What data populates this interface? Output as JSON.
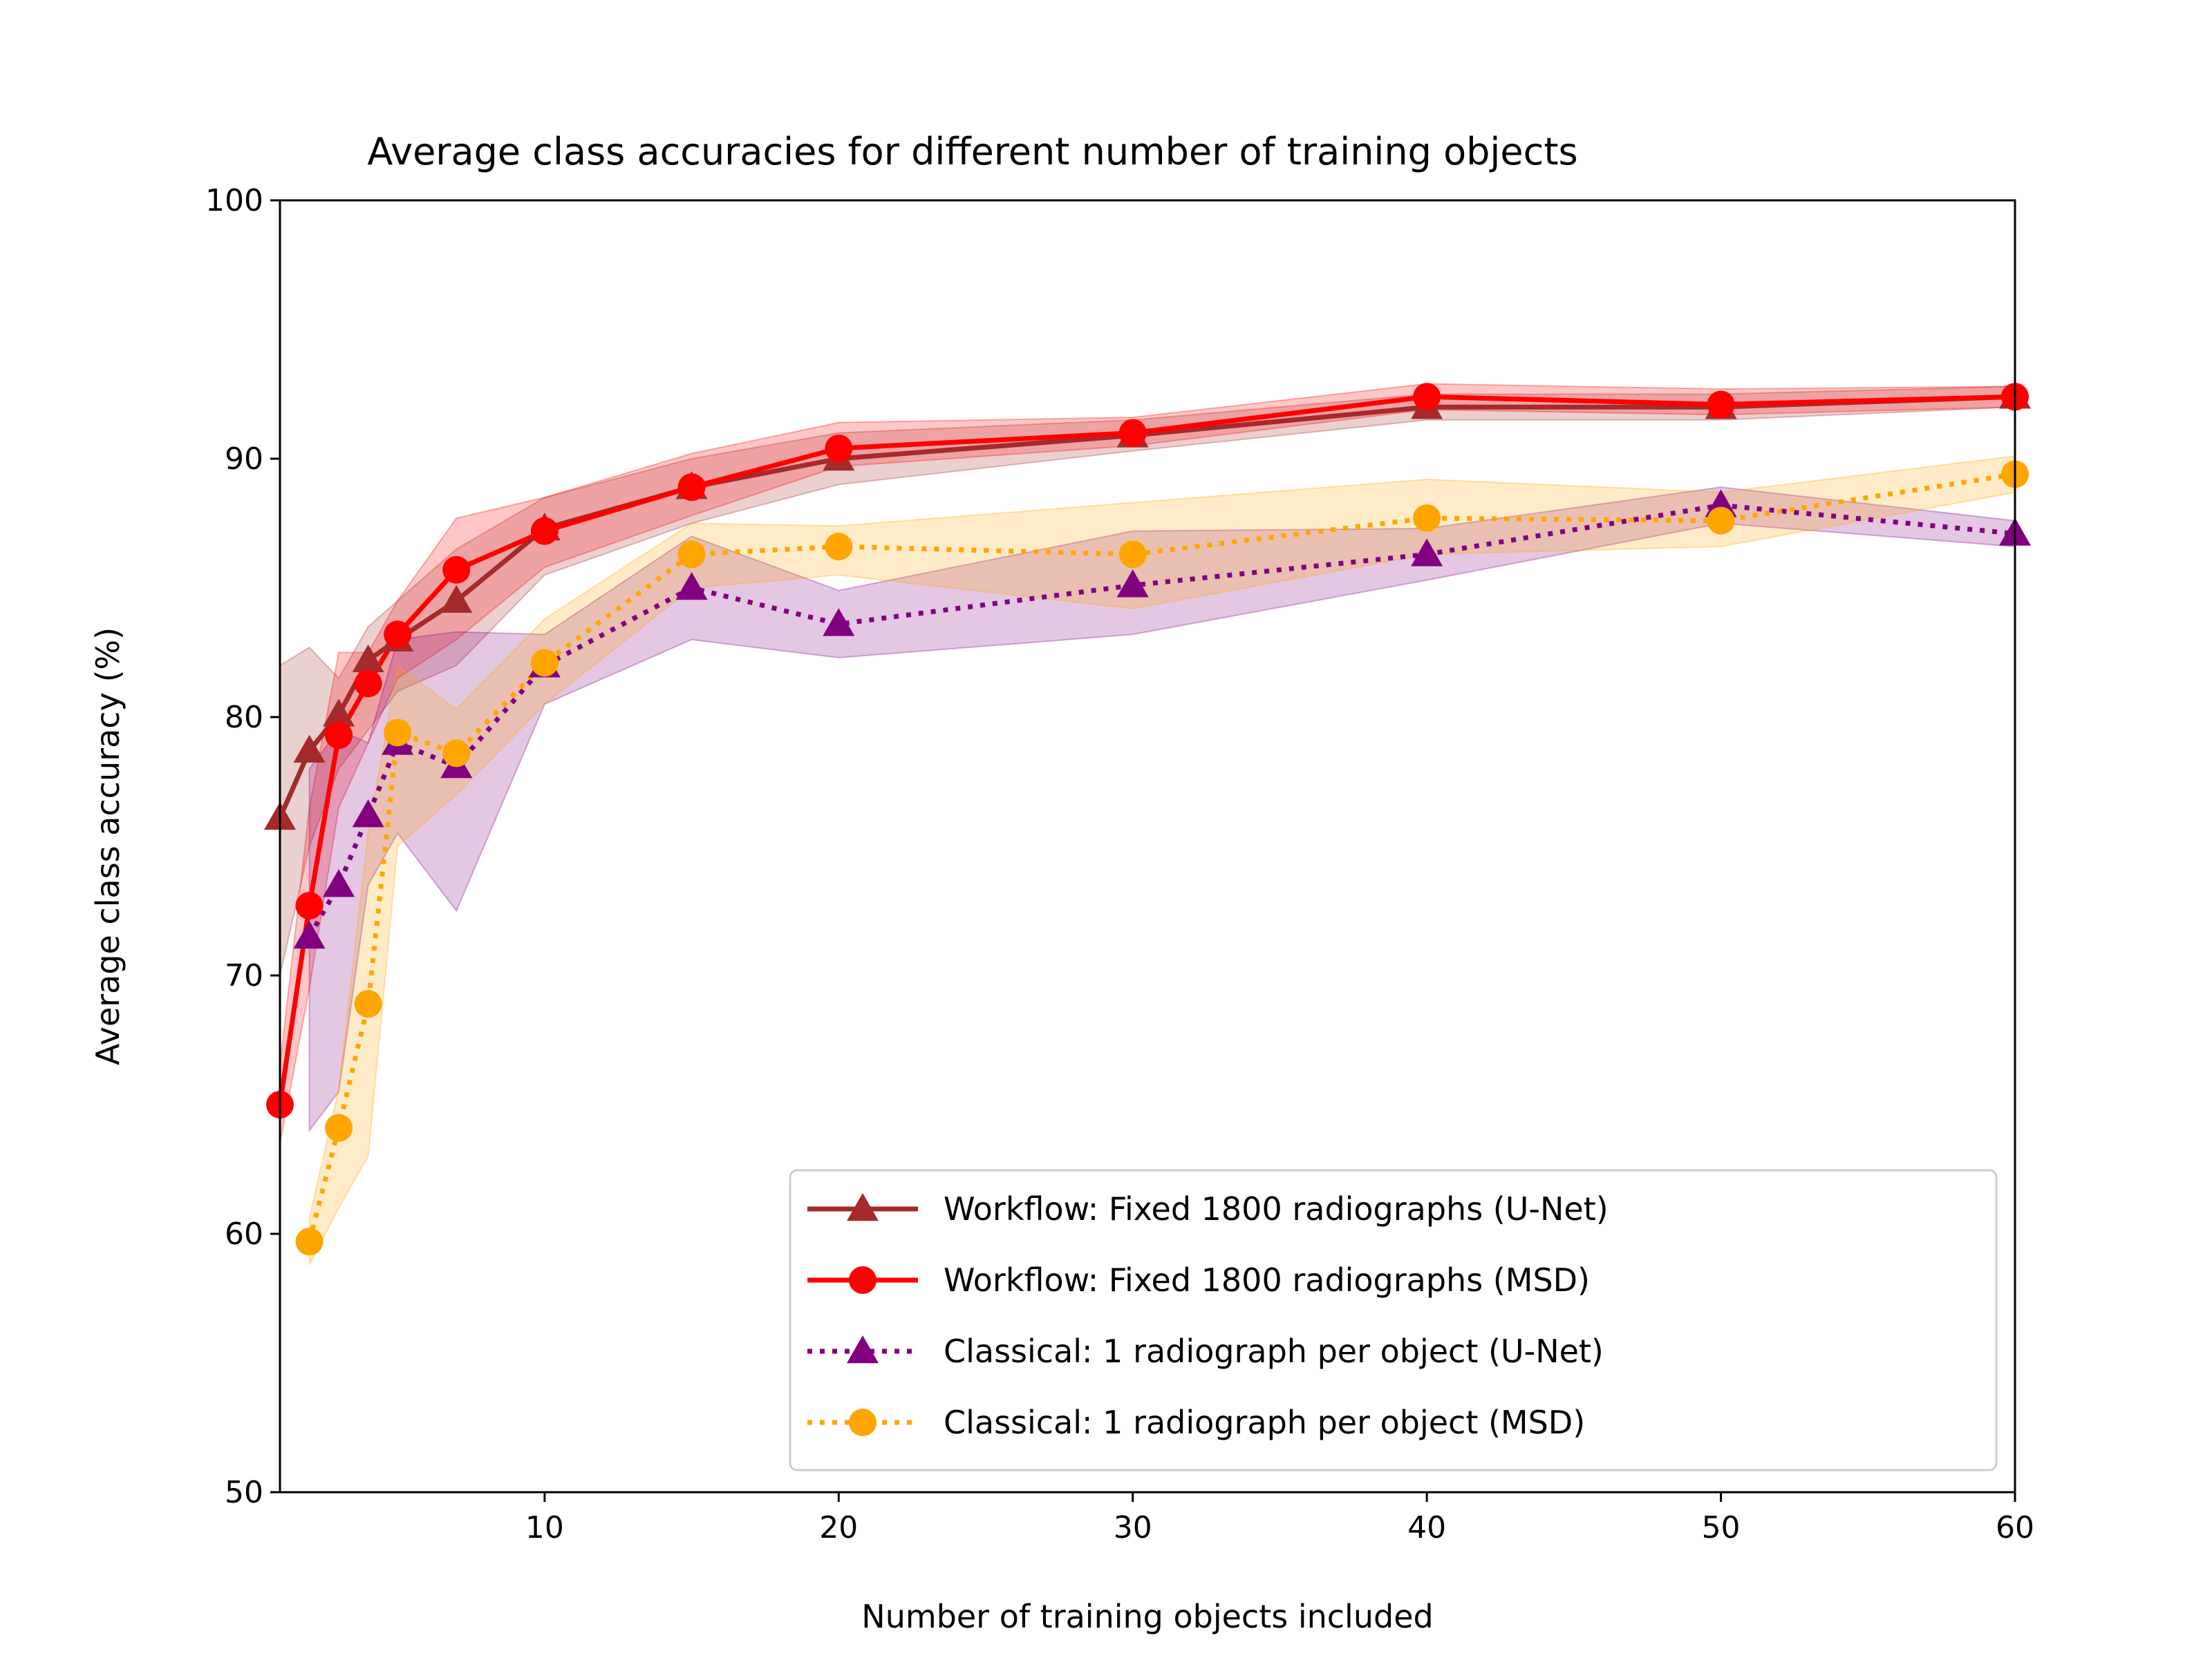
{
  "chart_data": {
    "type": "line",
    "title": "Average class accuracies for different number of training objects",
    "xlabel": "Number of training objects included",
    "ylabel": "Average class accuracy (%)",
    "xlim": [
      1,
      60
    ],
    "ylim": [
      50,
      100
    ],
    "xticks": [
      10,
      20,
      30,
      40,
      50,
      60
    ],
    "yticks": [
      50,
      60,
      70,
      80,
      90,
      100
    ],
    "grid": false,
    "legend_position": "lower-right",
    "series": [
      {
        "name": "Workflow: Fixed 1800 radiographs (U-Net)",
        "color": "#a52a2a",
        "marker": "triangle",
        "linestyle": "solid",
        "x": [
          1,
          2,
          3,
          4,
          5,
          7,
          10,
          15,
          20,
          30,
          40,
          50,
          60
        ],
        "y": [
          76.1,
          78.7,
          80.1,
          82.2,
          83.0,
          84.5,
          87.3,
          88.9,
          90.0,
          90.9,
          92.0,
          92.0,
          92.4
        ],
        "band_low": [
          70.0,
          75.0,
          78.0,
          79.5,
          81.0,
          82.0,
          85.5,
          87.5,
          89.0,
          90.3,
          91.5,
          91.5,
          92.0
        ],
        "band_high": [
          82.0,
          82.7,
          81.5,
          83.5,
          84.5,
          86.5,
          88.5,
          90.0,
          91.0,
          91.5,
          92.5,
          92.5,
          92.8
        ]
      },
      {
        "name": "Workflow: Fixed 1800 radiographs (MSD)",
        "color": "#ff0000",
        "marker": "circle",
        "linestyle": "solid",
        "x": [
          1,
          2,
          3,
          4,
          5,
          7,
          10,
          15,
          20,
          30,
          40,
          50,
          60
        ],
        "y": [
          65.0,
          72.7,
          79.3,
          81.3,
          83.2,
          85.7,
          87.2,
          88.9,
          90.4,
          91.0,
          92.4,
          92.1,
          92.4
        ],
        "band_low": [
          63.5,
          69.5,
          76.5,
          79.0,
          81.5,
          83.0,
          85.8,
          87.8,
          89.7,
          90.5,
          91.9,
          91.7,
          92.0
        ],
        "band_high": [
          66.5,
          76.5,
          82.5,
          82.5,
          84.5,
          87.7,
          88.5,
          90.2,
          91.4,
          91.6,
          92.9,
          92.7,
          92.8
        ]
      },
      {
        "name": "Classical: 1 radiograph per object (U-Net)",
        "color": "#800080",
        "marker": "triangle",
        "linestyle": "dotted",
        "x": [
          2,
          3,
          4,
          5,
          7,
          10,
          15,
          20,
          30,
          40,
          50,
          60
        ],
        "y": [
          71.5,
          73.5,
          76.2,
          79.0,
          78.1,
          82.0,
          85.0,
          83.6,
          85.1,
          86.3,
          88.2,
          87.1
        ],
        "band_low": [
          64.0,
          65.5,
          73.5,
          75.5,
          72.5,
          80.5,
          83.0,
          82.3,
          83.2,
          85.3,
          87.5,
          86.6
        ],
        "band_high": [
          78.0,
          79.5,
          79.0,
          83.0,
          83.3,
          83.2,
          87.0,
          84.9,
          87.2,
          87.3,
          88.9,
          87.6
        ]
      },
      {
        "name": "Classical: 1 radiograph per object (MSD)",
        "color": "#ffa500",
        "marker": "circle",
        "linestyle": "dotted",
        "x": [
          2,
          3,
          4,
          5,
          7,
          10,
          15,
          20,
          30,
          40,
          50,
          60
        ],
        "y": [
          59.7,
          64.1,
          68.9,
          79.4,
          78.6,
          82.1,
          86.3,
          86.6,
          86.3,
          87.7,
          87.6,
          89.4
        ],
        "band_low": [
          58.8,
          61.0,
          63.0,
          75.0,
          77.0,
          80.5,
          85.0,
          85.5,
          84.2,
          86.3,
          86.6,
          88.7
        ],
        "band_high": [
          60.6,
          65.6,
          75.5,
          82.0,
          80.3,
          83.8,
          87.5,
          87.4,
          88.3,
          89.2,
          88.7,
          90.1
        ]
      }
    ]
  }
}
